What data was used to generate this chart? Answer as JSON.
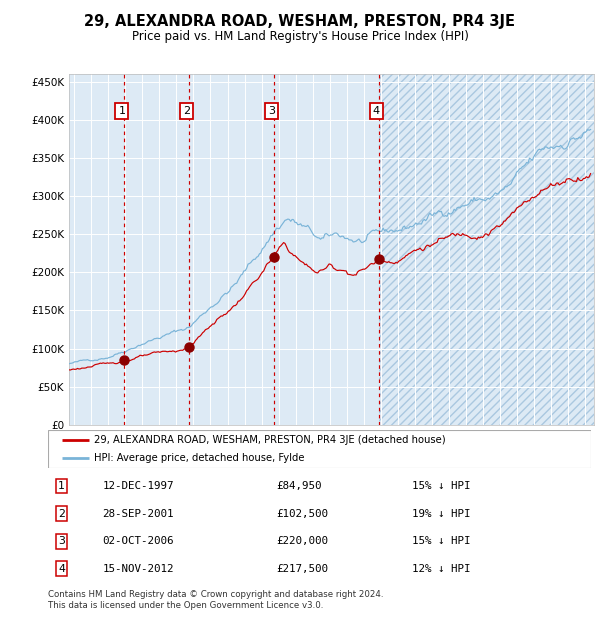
{
  "title": "29, ALEXANDRA ROAD, WESHAM, PRESTON, PR4 3JE",
  "subtitle": "Price paid vs. HM Land Registry's House Price Index (HPI)",
  "legend_line1": "29, ALEXANDRA ROAD, WESHAM, PRESTON, PR4 3JE (detached house)",
  "legend_line2": "HPI: Average price, detached house, Fylde",
  "footer1": "Contains HM Land Registry data © Crown copyright and database right 2024.",
  "footer2": "This data is licensed under the Open Government Licence v3.0.",
  "transactions": [
    {
      "num": 1,
      "date": "12-DEC-1997",
      "price": 84950,
      "pct": "15%",
      "dir": "↓",
      "year_x": 1997.95
    },
    {
      "num": 2,
      "date": "28-SEP-2001",
      "price": 102500,
      "pct": "19%",
      "dir": "↓",
      "year_x": 2001.75
    },
    {
      "num": 3,
      "date": "02-OCT-2006",
      "price": 220000,
      "pct": "15%",
      "dir": "↓",
      "year_x": 2006.75
    },
    {
      "num": 4,
      "date": "15-NOV-2012",
      "price": 217500,
      "pct": "12%",
      "dir": "↓",
      "year_x": 2012.88
    }
  ],
  "hpi_color": "#7ab4d8",
  "price_color": "#cc0000",
  "dot_color": "#8b0000",
  "vline_color": "#cc0000",
  "shade_color": "#ddeaf5",
  "hatch_color": "#aac8e0",
  "ylim": [
    0,
    460000
  ],
  "yticks": [
    0,
    50000,
    100000,
    150000,
    200000,
    250000,
    300000,
    350000,
    400000,
    450000
  ],
  "xlim_start": 1994.7,
  "xlim_end": 2025.5,
  "chart_bg": "#eaf2f9"
}
